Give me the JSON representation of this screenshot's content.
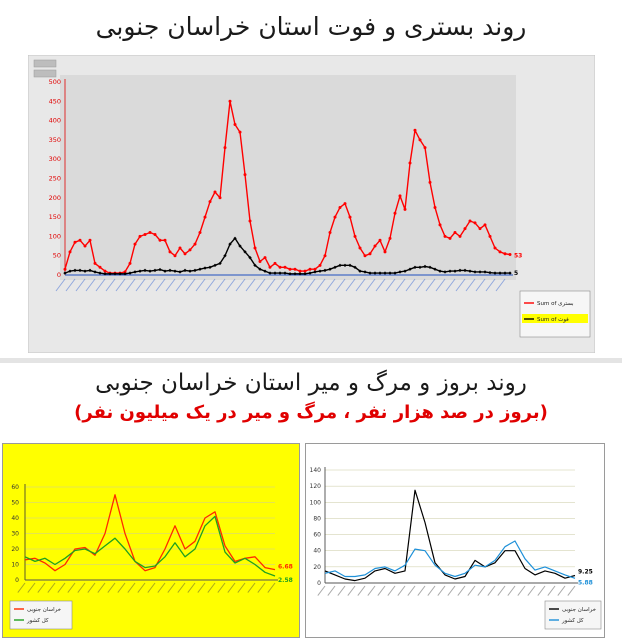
{
  "header": {
    "title": "روند بستری و فوت استان خراسان جنوبی"
  },
  "section2": {
    "title": "روند بروز و مرگ و میر استان خراسان جنوبی",
    "subtitle": "(بروز در صد هزار نفر ، مرگ و میر در یک میلیون نفر)"
  },
  "chart_data": [
    {
      "type": "line",
      "background": "#dadada",
      "ylim": [
        0,
        500
      ],
      "yticks": [
        "0",
        "50",
        "100",
        "150",
        "200",
        "250",
        "300",
        "350",
        "400",
        "450",
        "500"
      ],
      "tick_color": "#e00000",
      "grid": false,
      "legend_position": "bottom-right",
      "series": [
        {
          "name": "Sum of بستری",
          "color": "#ff0000",
          "end_label": "53",
          "values": [
            15,
            60,
            85,
            90,
            75,
            90,
            30,
            20,
            10,
            5,
            5,
            5,
            8,
            30,
            80,
            100,
            105,
            110,
            105,
            90,
            90,
            60,
            50,
            70,
            55,
            65,
            80,
            110,
            150,
            190,
            215,
            200,
            330,
            450,
            390,
            370,
            260,
            140,
            70,
            35,
            45,
            20,
            30,
            20,
            20,
            15,
            15,
            10,
            10,
            15,
            15,
            25,
            50,
            110,
            150,
            175,
            185,
            150,
            100,
            70,
            50,
            55,
            75,
            90,
            60,
            95,
            160,
            205,
            170,
            290,
            375,
            350,
            330,
            240,
            175,
            130,
            100,
            95,
            110,
            100,
            120,
            140,
            135,
            120,
            130,
            100,
            70,
            60,
            55,
            53
          ]
        },
        {
          "name": "Sum of فوت",
          "color": "#000000",
          "legend_highlight": "#ffff00",
          "end_label": "5",
          "values": [
            5,
            10,
            12,
            12,
            10,
            12,
            8,
            5,
            3,
            3,
            3,
            3,
            3,
            5,
            8,
            10,
            12,
            10,
            12,
            14,
            10,
            12,
            10,
            8,
            12,
            10,
            12,
            15,
            18,
            20,
            25,
            30,
            50,
            80,
            95,
            75,
            60,
            45,
            25,
            15,
            10,
            5,
            5,
            5,
            5,
            3,
            3,
            3,
            3,
            5,
            8,
            10,
            12,
            15,
            20,
            25,
            25,
            25,
            20,
            10,
            8,
            5,
            5,
            5,
            5,
            5,
            5,
            8,
            10,
            15,
            20,
            20,
            22,
            20,
            15,
            10,
            8,
            10,
            10,
            12,
            12,
            10,
            8,
            8,
            8,
            6,
            5,
            5,
            5,
            5
          ]
        }
      ]
    },
    {
      "type": "line",
      "background": "#ffff00",
      "ylim": [
        0,
        60
      ],
      "yticks": [
        "0",
        "10",
        "20",
        "30",
        "40",
        "50",
        "60"
      ],
      "tick_color": "#333333",
      "grid": true,
      "legend_position": "bottom-left",
      "series": [
        {
          "name": "خراسان جنوبی",
          "color": "#ff2a00",
          "end_label": "6.68",
          "values": [
            13,
            14,
            11,
            6,
            10,
            20,
            21,
            16,
            30,
            55,
            30,
            12,
            6,
            8,
            20,
            35,
            20,
            25,
            40,
            44,
            22,
            12,
            14,
            15,
            8,
            6.68
          ]
        },
        {
          "name": "کل کشور",
          "color": "#1fa01f",
          "end_label": "2.58",
          "values": [
            15,
            12,
            14,
            10,
            14,
            19,
            20,
            17,
            22,
            27,
            20,
            12,
            8,
            9,
            15,
            24,
            15,
            20,
            35,
            41,
            18,
            11,
            14,
            10,
            5,
            2.58
          ]
        }
      ]
    },
    {
      "type": "line",
      "background": "#ffffff",
      "ylim": [
        0,
        140
      ],
      "yticks": [
        "0",
        "20",
        "40",
        "60",
        "80",
        "100",
        "120",
        "140"
      ],
      "tick_color": "#333333",
      "grid": true,
      "legend_position": "bottom-right",
      "series": [
        {
          "name": "خراسان جنوبی",
          "color": "#000000",
          "end_label": "9.25",
          "values": [
            15,
            10,
            5,
            3,
            6,
            15,
            18,
            12,
            15,
            115,
            75,
            25,
            10,
            5,
            8,
            28,
            20,
            25,
            40,
            40,
            18,
            10,
            15,
            12,
            6,
            9.25
          ]
        },
        {
          "name": "کل کشور",
          "color": "#1e90d8",
          "end_label": "5.88",
          "values": [
            12,
            15,
            8,
            8,
            10,
            18,
            20,
            15,
            22,
            42,
            40,
            22,
            12,
            8,
            12,
            22,
            20,
            28,
            45,
            52,
            30,
            16,
            20,
            15,
            10,
            5.88
          ]
        }
      ]
    }
  ]
}
